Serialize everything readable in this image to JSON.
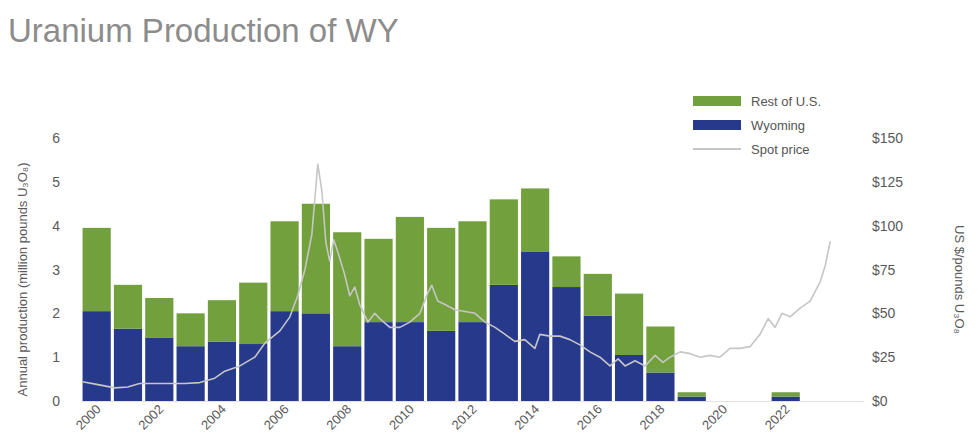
{
  "chart_data": {
    "type": "bar",
    "title": "Uranium Production of WY",
    "y_label": "Annual production (million pounds U₃O₈)",
    "y2_label": "US $/pounds U₃O₈",
    "stacked": true,
    "grid": false,
    "legend": "top right",
    "x": [
      2000,
      2001,
      2002,
      2003,
      2004,
      2005,
      2006,
      2007,
      2008,
      2009,
      2010,
      2011,
      2012,
      2013,
      2014,
      2015,
      2016,
      2017,
      2018,
      2019,
      2020,
      2021,
      2022
    ],
    "xlim": [
      1999.5,
      2024.5
    ],
    "xticks": [
      2000,
      2002,
      2004,
      2006,
      2008,
      2010,
      2012,
      2014,
      2016,
      2018,
      2020,
      2022
    ],
    "ylim": [
      0,
      6
    ],
    "yticks": [
      0,
      1,
      2,
      3,
      4,
      5,
      6
    ],
    "y2lim": [
      0,
      150
    ],
    "y2ticks": [
      {
        "value": 0,
        "label": "$0"
      },
      {
        "value": 25,
        "label": "$25"
      },
      {
        "value": 50,
        "label": "$50"
      },
      {
        "value": 75,
        "label": "$75"
      },
      {
        "value": 100,
        "label": "$100"
      },
      {
        "value": 125,
        "label": "$125"
      },
      {
        "value": 150,
        "label": "$150"
      }
    ],
    "series": [
      {
        "name": "Wyoming",
        "color": "#27398a",
        "values": [
          2.05,
          1.65,
          1.45,
          1.25,
          1.35,
          1.3,
          2.05,
          2.0,
          1.25,
          1.8,
          1.8,
          1.6,
          1.8,
          2.65,
          3.4,
          2.6,
          1.95,
          1.05,
          0.65,
          0.1,
          0,
          0,
          0.1
        ]
      },
      {
        "name": "Rest of U.S.",
        "color": "#72a03c",
        "values": [
          1.9,
          1.0,
          0.9,
          0.75,
          0.95,
          1.4,
          2.05,
          2.5,
          2.6,
          1.9,
          2.4,
          2.35,
          2.3,
          1.95,
          1.45,
          0.7,
          0.95,
          1.4,
          1.05,
          0.1,
          0,
          0,
          0.1
        ]
      },
      {
        "name": "Spot price",
        "type": "line",
        "axis": "y2",
        "color": "#c6c6c6",
        "x": [
          1999.55,
          2000,
          2000.58,
          2000.99,
          2001.37,
          2002.01,
          2002.81,
          2003.29,
          2003.77,
          2004.09,
          2004.57,
          2005.05,
          2005.37,
          2005.85,
          2006.17,
          2006.42,
          2006.65,
          2006.87,
          2007.06,
          2007.19,
          2007.32,
          2007.44,
          2007.57,
          2007.7,
          2007.92,
          2008.08,
          2008.24,
          2008.4,
          2008.66,
          2008.88,
          2009.04,
          2009.36,
          2009.68,
          2010,
          2010.32,
          2010.58,
          2010.7,
          2010.89,
          2011.12,
          2011.44,
          2011.76,
          2012.08,
          2012.4,
          2012.72,
          2013.04,
          2013.35,
          2013.67,
          2013.99,
          2014.15,
          2014.47,
          2014.79,
          2015.11,
          2015.43,
          2015.75,
          2016.07,
          2016.39,
          2016.65,
          2016.87,
          2017.19,
          2017.51,
          2017.83,
          2018.08,
          2018.31,
          2018.63,
          2018.95,
          2019.27,
          2019.58,
          2019.9,
          2020.22,
          2020.54,
          2020.86,
          2021.18,
          2021.44,
          2021.66,
          2021.88,
          2022.14,
          2022.46,
          2022.78,
          2023.1,
          2023.26,
          2023.42
        ],
        "values": [
          11,
          9.5,
          7.5,
          8,
          10,
          10,
          10,
          10.5,
          13,
          17,
          20,
          25,
          33,
          40,
          48,
          60,
          75,
          95,
          135,
          120,
          90,
          80,
          92,
          85,
          72,
          60,
          65,
          55,
          45,
          50,
          47,
          42,
          42,
          45,
          50,
          62,
          66,
          57,
          55,
          52,
          51,
          50,
          45,
          42,
          38,
          34,
          35,
          30,
          38,
          37,
          37,
          35,
          32,
          28,
          25,
          20,
          24,
          20,
          23,
          20,
          26,
          22,
          25,
          28,
          27,
          25,
          26,
          25,
          30,
          30,
          31,
          38,
          47,
          42,
          50,
          48,
          53,
          57,
          68,
          77,
          91
        ]
      }
    ]
  }
}
